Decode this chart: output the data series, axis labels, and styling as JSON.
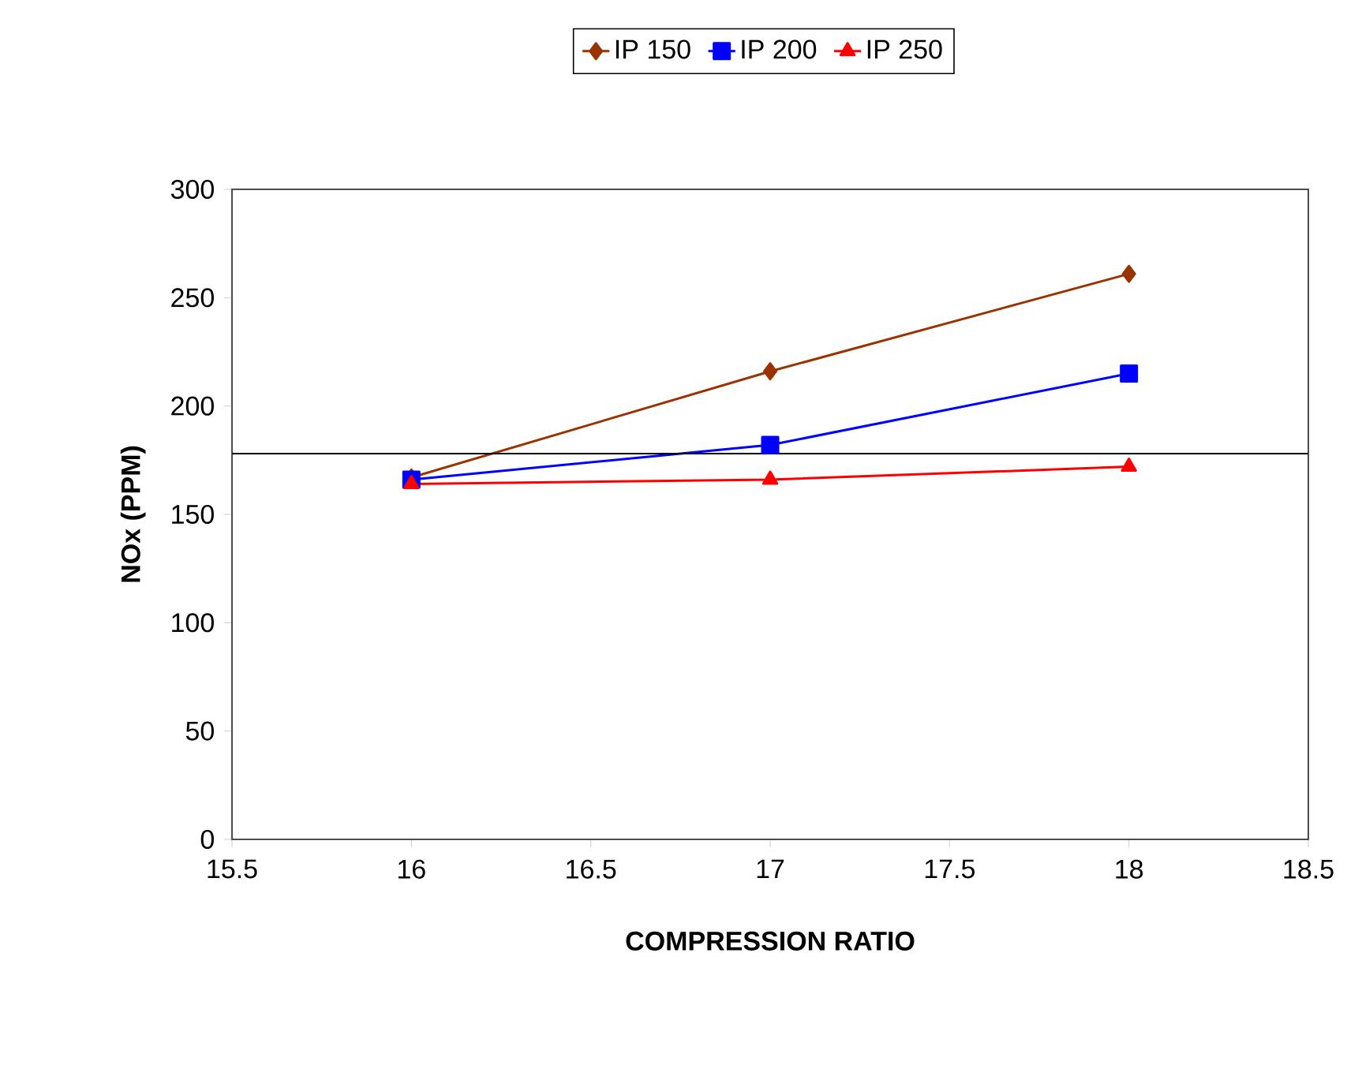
{
  "chart_data": {
    "type": "line",
    "xlabel": "COMPRESSION RATIO",
    "ylabel": "NOx (PPM)",
    "x": [
      16,
      17,
      18
    ],
    "series": [
      {
        "name": "IP 150",
        "color": "#993300",
        "marker": "diamond",
        "values": [
          167,
          216,
          261
        ]
      },
      {
        "name": "IP 200",
        "color": "#0000ff",
        "marker": "square",
        "values": [
          166,
          182,
          215
        ]
      },
      {
        "name": "IP 250",
        "color": "#ff0000",
        "marker": "triangle",
        "values": [
          164,
          166,
          172
        ]
      }
    ],
    "xlim": [
      15.5,
      18.5
    ],
    "xticks": [
      15.5,
      16,
      16.5,
      17,
      17.5,
      18,
      18.5
    ],
    "ylim": [
      0,
      300
    ],
    "yticks": [
      0,
      50,
      100,
      150,
      200,
      250,
      300
    ],
    "ref_lines": [
      {
        "axis": "y",
        "value": 178,
        "color": "#000000"
      }
    ],
    "legend": "top",
    "grid": false,
    "line_style": "solid"
  }
}
